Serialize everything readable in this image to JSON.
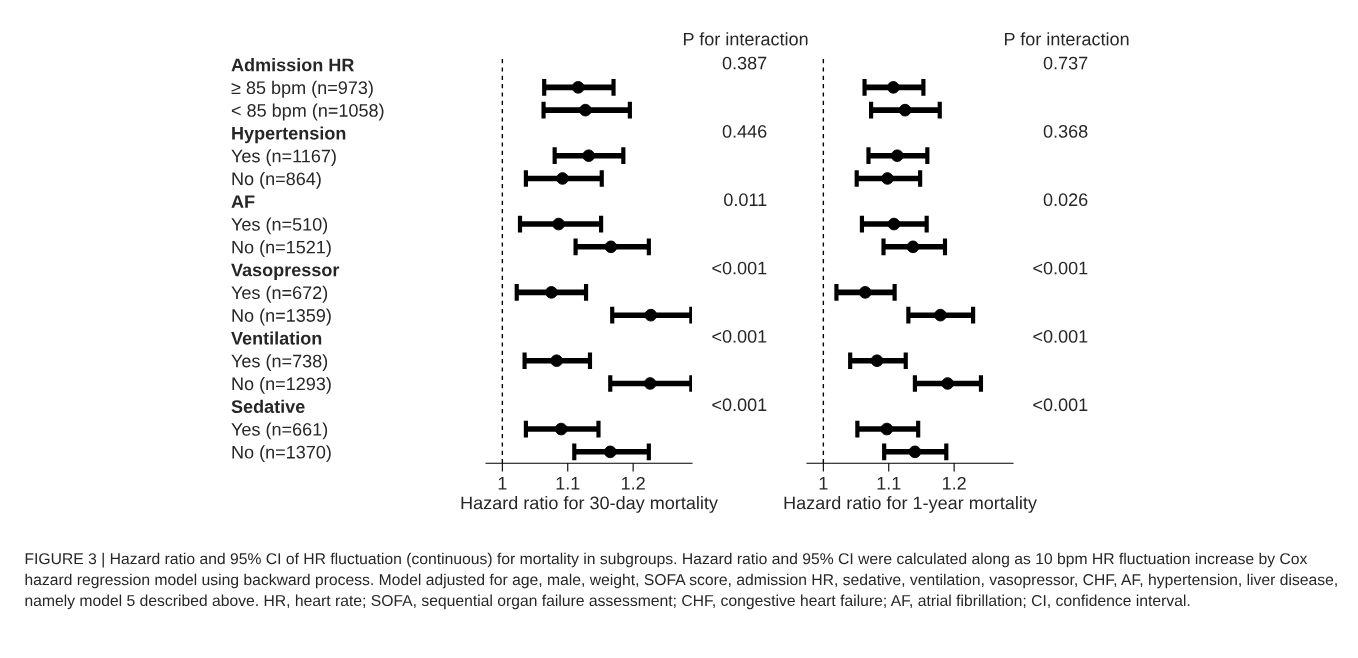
{
  "chart_data": [
    {
      "type": "scatter",
      "orientation": "horizontal",
      "marker": "circle",
      "color": "#000000",
      "xlabel": "Hazard ratio for 30-day mortality",
      "categories": [
        "Admission HR",
        "≥ 85 bpm (n=973)",
        "< 85 bpm (n=1058)",
        "Hypertension",
        "Yes (n=1167)",
        "No (n=864)",
        "AF",
        "Yes (n=510)",
        "No (n=1521)",
        "Vasopressor",
        "Yes (n=672)",
        "No (n=1359)",
        "Ventilation",
        "Yes (n=738)",
        "No (n=1293)",
        "Sedative",
        "Yes (n=661)",
        "No (n=1370)"
      ],
      "values": [
        null,
        1.116,
        1.127,
        null,
        1.132,
        1.092,
        null,
        1.086,
        1.166,
        null,
        1.075,
        1.227,
        null,
        1.083,
        1.226,
        null,
        1.09,
        1.165
      ],
      "errors": [
        null,
        [
          1.064,
          1.17
        ],
        [
          1.063,
          1.195
        ],
        null,
        [
          1.08,
          1.185
        ],
        [
          1.036,
          1.152
        ],
        null,
        [
          1.027,
          1.151
        ],
        [
          1.112,
          1.224
        ],
        null,
        [
          1.022,
          1.128
        ],
        [
          1.168,
          1.289
        ],
        null,
        [
          1.034,
          1.134
        ],
        [
          1.165,
          1.289
        ],
        null,
        [
          1.036,
          1.147
        ],
        [
          1.11,
          1.224
        ]
      ],
      "xlim": [
        0.975,
        1.29
      ],
      "xticks": [
        1,
        1.1,
        1.2
      ],
      "ref_lines": [
        {
          "axis": "x",
          "value": 1,
          "line_style": "dashed"
        }
      ],
      "annotations": [
        "P for interaction",
        "0.387",
        "0.446",
        "0.011",
        "<0.001",
        "<0.001",
        "<0.001",
        "FIGURE 3 | Hazard ratio and 95% CI of HR fluctuation (continuous) for mortality in subgroups. Hazard ratio and 95% CI were calculated along as 10 bpm HR fluctuation increase by Cox hazard regression model using backward process. Model adjusted for age, male, weight, SOFA score, admission HR, sedative, ventilation, vasopressor, CHF, AF, hypertension, liver disease, namely model 5 described above. HR, heart rate; SOFA, sequential organ failure assessment; CHF, congestive heart failure; AF, atrial fibrillation; CI, confidence interval."
      ]
    },
    {
      "type": "scatter",
      "orientation": "horizontal",
      "marker": "circle",
      "color": "#000000",
      "xlabel": "Hazard ratio for 1-year mortality",
      "tick_labels": "x",
      "values": [
        null,
        1.107,
        1.125,
        null,
        1.113,
        1.098,
        null,
        1.108,
        1.137,
        null,
        1.064,
        1.179,
        null,
        1.082,
        1.19,
        null,
        1.097,
        1.14
      ],
      "errors": [
        null,
        [
          1.063,
          1.153
        ],
        [
          1.073,
          1.178
        ],
        null,
        [
          1.069,
          1.159
        ],
        [
          1.051,
          1.148
        ],
        null,
        [
          1.059,
          1.158
        ],
        [
          1.092,
          1.186
        ],
        null,
        [
          1.02,
          1.109
        ],
        [
          1.13,
          1.229
        ],
        null,
        [
          1.041,
          1.126
        ],
        [
          1.14,
          1.241
        ],
        null,
        [
          1.052,
          1.145
        ],
        [
          1.093,
          1.188
        ]
      ],
      "xlim": [
        0.975,
        1.29
      ],
      "xticks": [
        1,
        1.1,
        1.2
      ],
      "ref_lines": [
        {
          "axis": "x",
          "value": 1,
          "line_style": "dashed"
        }
      ],
      "annotations": [
        "P for interaction",
        "0.737",
        "0.368",
        "0.026",
        "<0.001",
        "<0.001",
        "<0.001"
      ]
    }
  ]
}
